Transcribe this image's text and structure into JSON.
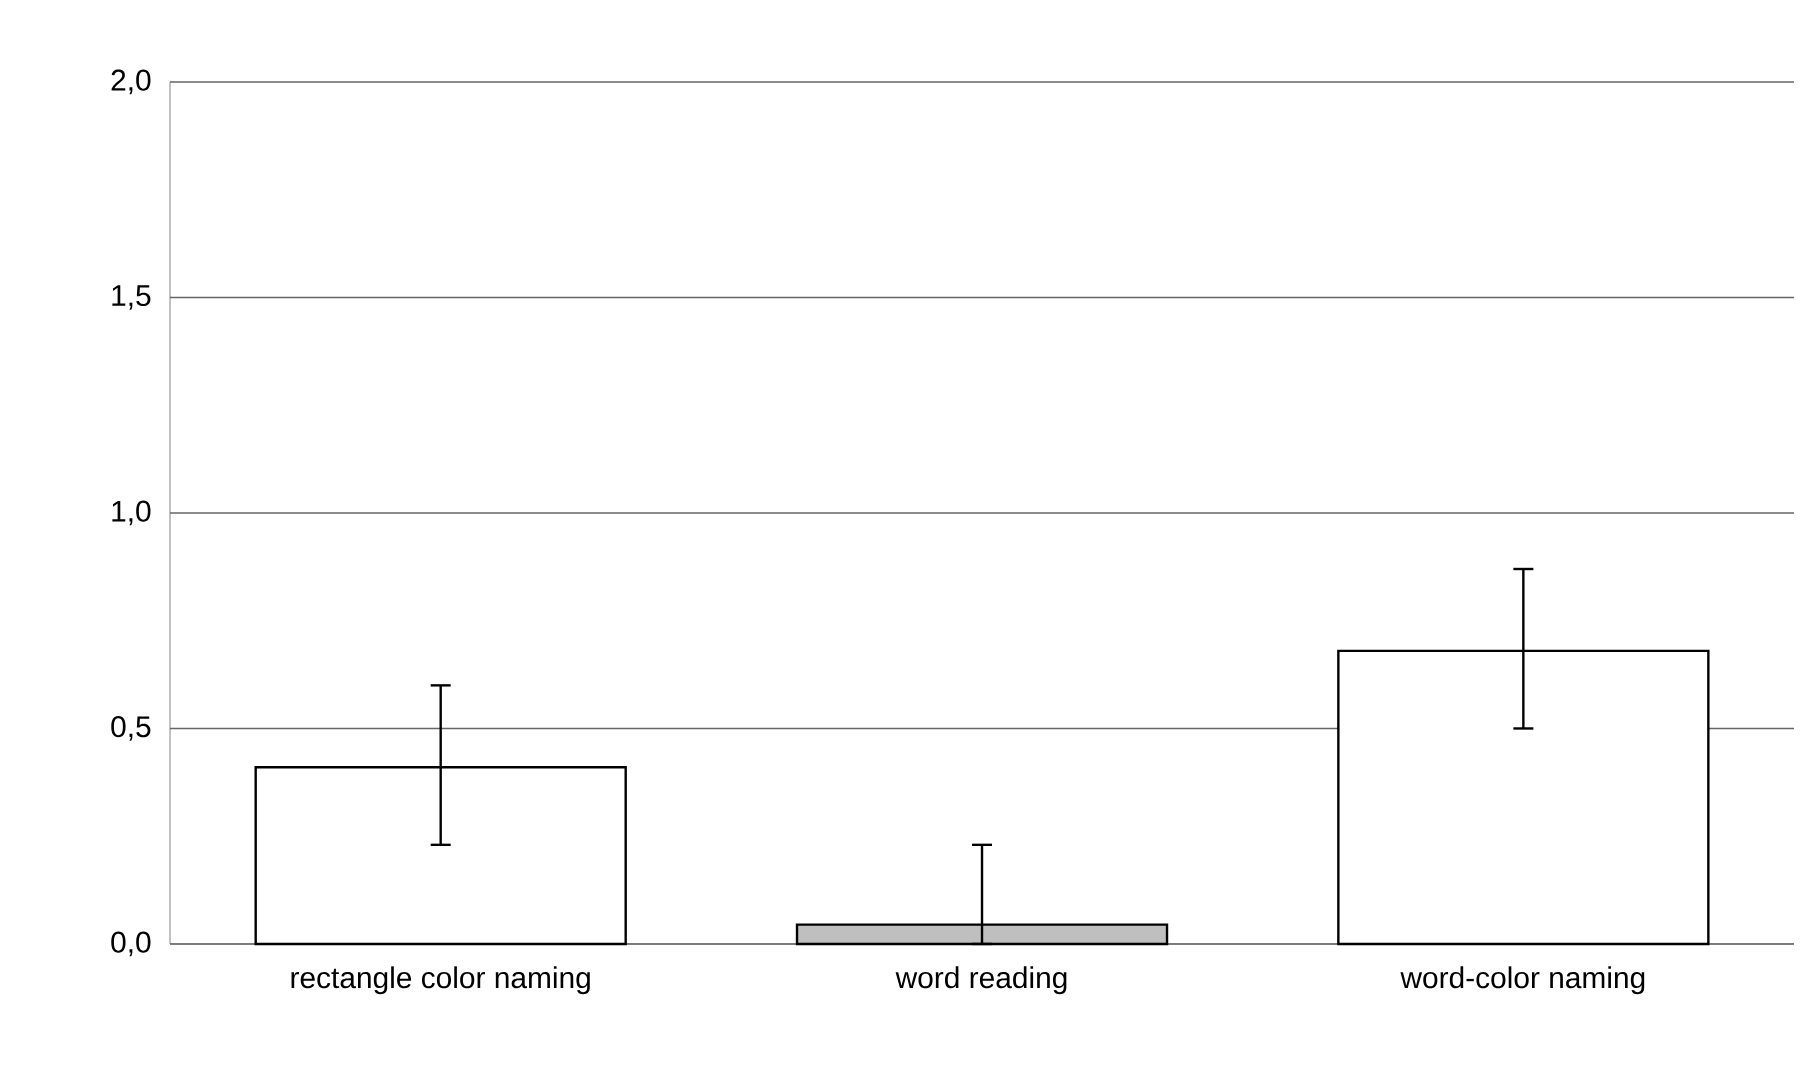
{
  "chart_data": {
    "type": "bar",
    "categories": [
      "rectangle color naming",
      "word reading",
      "word-color naming"
    ],
    "values": [
      0.41,
      0.045,
      0.68
    ],
    "colors": [
      "#ffffff",
      "#bfbfbf",
      "#ffffff"
    ],
    "errors": [
      [
        0.23,
        0.6
      ],
      [
        0,
        0.23
      ],
      [
        0.5,
        0.87
      ]
    ],
    "ylim": [
      0,
      2
    ],
    "yticks": [
      {
        "value": 0,
        "label": "0,0"
      },
      {
        "value": 0.5,
        "label": "0,5"
      },
      {
        "value": 1,
        "label": "1,0"
      },
      {
        "value": 1.5,
        "label": "1,5"
      },
      {
        "value": 2,
        "label": "2,0"
      }
    ],
    "grid": "y"
  }
}
